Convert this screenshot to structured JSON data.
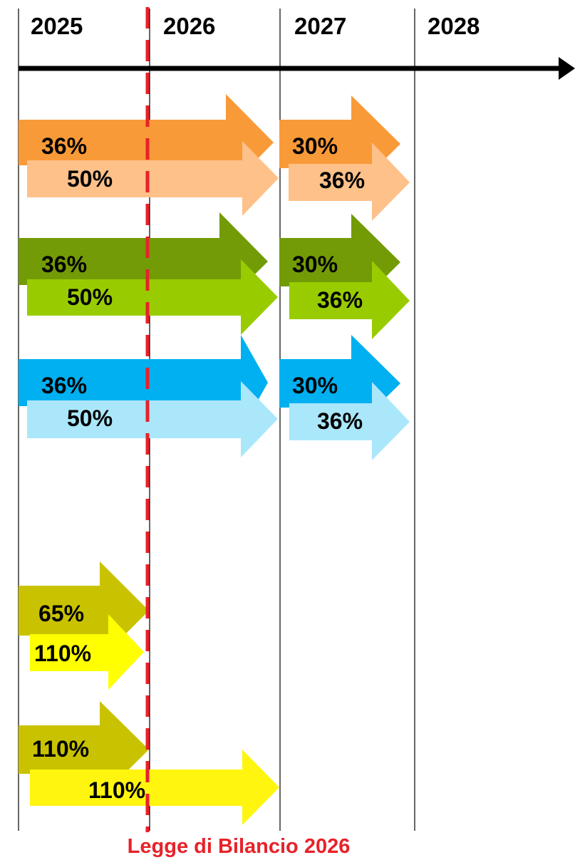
{
  "timeline": {
    "years": [
      "2025",
      "2026",
      "2027",
      "2028"
    ]
  },
  "groups": [
    {
      "top": {
        "segments": [
          {
            "label": "36%",
            "color": "#f99a38"
          },
          {
            "label": "30%",
            "color": "#f99a38"
          }
        ]
      },
      "bottom": {
        "segments": [
          {
            "label": "50%",
            "color": "#fdc189"
          },
          {
            "label": "36%",
            "color": "#fdc189"
          }
        ]
      }
    },
    {
      "top": {
        "segments": [
          {
            "label": "36%",
            "color": "#739b06"
          },
          {
            "label": "30%",
            "color": "#739b06"
          }
        ]
      },
      "bottom": {
        "segments": [
          {
            "label": "50%",
            "color": "#99cc00"
          },
          {
            "label": "36%",
            "color": "#99cc00"
          }
        ]
      }
    },
    {
      "top": {
        "segments": [
          {
            "label": "36%",
            "color": "#00b0f0"
          },
          {
            "label": "30%",
            "color": "#00b0f0"
          }
        ]
      },
      "bottom": {
        "segments": [
          {
            "label": "50%",
            "color": "#abe7fb"
          },
          {
            "label": "36%",
            "color": "#abe7fb"
          }
        ]
      }
    },
    {
      "top": {
        "segments": [
          {
            "label": "65%",
            "color": "#c9c200"
          }
        ]
      },
      "bottom": {
        "segments": [
          {
            "label": "110%",
            "color": "#ffff00"
          }
        ]
      }
    },
    {
      "top": {
        "segments": [
          {
            "label": "110%",
            "color": "#c9c200"
          }
        ]
      },
      "bottom": {
        "segments": [
          {
            "label": "110%",
            "color": "#fff50f"
          }
        ]
      }
    }
  ],
  "cutoff": {
    "label": "Legge di Bilancio 2026",
    "color": "#e8222a"
  }
}
